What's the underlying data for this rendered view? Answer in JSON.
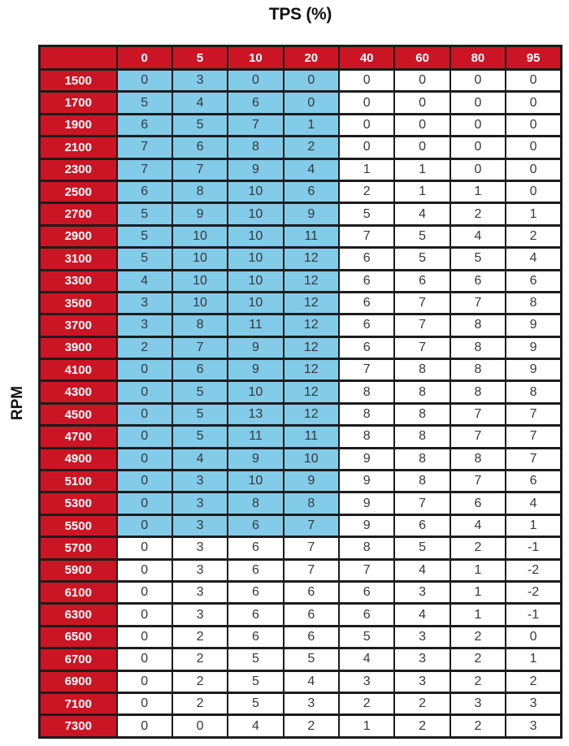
{
  "title": "TPS (%)",
  "y_axis_label": "RPM",
  "colors": {
    "header_red": "#cc1524",
    "highlight_blue": "#82cbe9",
    "border": "#1c1c1c",
    "header_text": "#ffffff",
    "cell_text": "#383838",
    "cell_bg": "#ffffff"
  },
  "chart_data": {
    "type": "table",
    "title": "TPS (%)",
    "xlabel": "TPS (%)",
    "ylabel": "RPM",
    "columns": [
      "0",
      "5",
      "10",
      "20",
      "40",
      "60",
      "80",
      "95"
    ],
    "rows": [
      {
        "rpm": "1500",
        "values": [
          0,
          3,
          0,
          0,
          0,
          0,
          0,
          0
        ]
      },
      {
        "rpm": "1700",
        "values": [
          5,
          4,
          6,
          0,
          0,
          0,
          0,
          0
        ]
      },
      {
        "rpm": "1900",
        "values": [
          6,
          5,
          7,
          1,
          0,
          0,
          0,
          0
        ]
      },
      {
        "rpm": "2100",
        "values": [
          7,
          6,
          8,
          2,
          0,
          0,
          0,
          0
        ]
      },
      {
        "rpm": "2300",
        "values": [
          7,
          7,
          9,
          4,
          1,
          1,
          0,
          0
        ]
      },
      {
        "rpm": "2500",
        "values": [
          6,
          8,
          10,
          6,
          2,
          1,
          1,
          0
        ]
      },
      {
        "rpm": "2700",
        "values": [
          5,
          9,
          10,
          9,
          5,
          4,
          2,
          1
        ]
      },
      {
        "rpm": "2900",
        "values": [
          5,
          10,
          10,
          11,
          7,
          5,
          4,
          2
        ]
      },
      {
        "rpm": "3100",
        "values": [
          5,
          10,
          10,
          12,
          6,
          5,
          5,
          4
        ]
      },
      {
        "rpm": "3300",
        "values": [
          4,
          10,
          10,
          12,
          6,
          6,
          6,
          6
        ]
      },
      {
        "rpm": "3500",
        "values": [
          3,
          10,
          10,
          12,
          6,
          7,
          7,
          8
        ]
      },
      {
        "rpm": "3700",
        "values": [
          3,
          8,
          11,
          12,
          6,
          7,
          8,
          9
        ]
      },
      {
        "rpm": "3900",
        "values": [
          2,
          7,
          9,
          12,
          6,
          7,
          8,
          9
        ]
      },
      {
        "rpm": "4100",
        "values": [
          0,
          6,
          9,
          12,
          7,
          8,
          8,
          9
        ]
      },
      {
        "rpm": "4300",
        "values": [
          0,
          5,
          10,
          12,
          8,
          8,
          8,
          8
        ]
      },
      {
        "rpm": "4500",
        "values": [
          0,
          5,
          13,
          12,
          8,
          8,
          7,
          7
        ]
      },
      {
        "rpm": "4700",
        "values": [
          0,
          5,
          11,
          11,
          8,
          8,
          7,
          7
        ]
      },
      {
        "rpm": "4900",
        "values": [
          0,
          4,
          9,
          10,
          9,
          8,
          8,
          7
        ]
      },
      {
        "rpm": "5100",
        "values": [
          0,
          3,
          10,
          9,
          9,
          8,
          7,
          6
        ]
      },
      {
        "rpm": "5300",
        "values": [
          0,
          3,
          8,
          8,
          9,
          7,
          6,
          4
        ]
      },
      {
        "rpm": "5500",
        "values": [
          0,
          3,
          6,
          7,
          9,
          6,
          4,
          1
        ]
      },
      {
        "rpm": "5700",
        "values": [
          0,
          3,
          6,
          7,
          8,
          5,
          2,
          -1
        ]
      },
      {
        "rpm": "5900",
        "values": [
          0,
          3,
          6,
          7,
          7,
          4,
          1,
          -2
        ]
      },
      {
        "rpm": "6100",
        "values": [
          0,
          3,
          6,
          6,
          6,
          3,
          1,
          -2
        ]
      },
      {
        "rpm": "6300",
        "values": [
          0,
          3,
          6,
          6,
          6,
          4,
          1,
          -1
        ]
      },
      {
        "rpm": "6500",
        "values": [
          0,
          2,
          6,
          6,
          5,
          3,
          2,
          0
        ]
      },
      {
        "rpm": "6700",
        "values": [
          0,
          2,
          5,
          5,
          4,
          3,
          2,
          1
        ]
      },
      {
        "rpm": "6900",
        "values": [
          0,
          2,
          5,
          4,
          3,
          3,
          2,
          2
        ]
      },
      {
        "rpm": "7100",
        "values": [
          0,
          2,
          5,
          3,
          2,
          2,
          3,
          3
        ]
      },
      {
        "rpm": "7300",
        "values": [
          0,
          0,
          4,
          2,
          1,
          2,
          2,
          3
        ]
      }
    ],
    "highlight": {
      "description": "light-blue highlighted cell region",
      "col_start_tps": "0",
      "col_end_tps": "20",
      "row_start_rpm": "1500",
      "row_end_rpm": "5500"
    },
    "grid": true,
    "legend_position": "none"
  }
}
